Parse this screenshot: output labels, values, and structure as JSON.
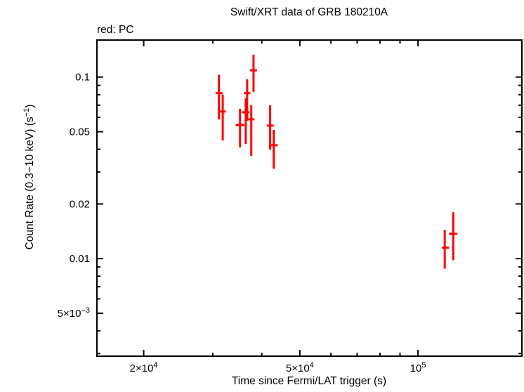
{
  "chart_data": {
    "type": "scatter",
    "title": "Swift/XRT data of GRB 180210A",
    "annotation": "red: PC",
    "xlabel": "Time since Fermi/LAT trigger (s)",
    "ylabel": "Count Rate (0.3−10 keV) (s−1)",
    "ylabel_parts": [
      {
        "text": "Count Rate (0.3−10 keV) (s"
      },
      {
        "text": "−1",
        "sup": true
      },
      {
        "text": ")"
      }
    ],
    "xscale": "log",
    "yscale": "log",
    "xlim": [
      15200,
      184000
    ],
    "ylim": [
      0.0029,
      0.16
    ],
    "grid": false,
    "legend_position": "none",
    "background_color": "#ffffff",
    "axis_color": "#000000",
    "xticks": {
      "major": [
        {
          "value": 20000,
          "label_main": "2×10",
          "label_sup": "4"
        },
        {
          "value": 50000,
          "label_main": "5×10",
          "label_sup": "4"
        },
        {
          "value": 100000,
          "label_main": "10",
          "label_sup": "5"
        }
      ],
      "minor": [
        30000,
        40000,
        60000,
        70000,
        80000,
        90000
      ]
    },
    "yticks": {
      "major": [
        {
          "value": 0.1,
          "label_main": "0.1",
          "label_sup": ""
        },
        {
          "value": 0.05,
          "label_main": "0.05",
          "label_sup": ""
        },
        {
          "value": 0.02,
          "label_main": "0.02",
          "label_sup": ""
        },
        {
          "value": 0.01,
          "label_main": "0.01",
          "label_sup": ""
        },
        {
          "value": 0.005,
          "label_main": "5×10",
          "label_sup": "−3"
        }
      ],
      "minor": [
        0.09,
        0.08,
        0.07,
        0.06,
        0.04,
        0.03,
        0.009,
        0.008,
        0.007,
        0.006,
        0.004,
        0.003
      ]
    },
    "series": [
      {
        "name": "PC",
        "color": "#ff0000",
        "points": [
          {
            "t": 31100,
            "t_lo": 30500,
            "t_hi": 31800,
            "rate": 0.0815,
            "rate_lo": 0.0585,
            "rate_hi": 0.103
          },
          {
            "t": 31800,
            "t_lo": 31200,
            "t_hi": 32400,
            "rate": 0.0646,
            "rate_lo": 0.0448,
            "rate_hi": 0.08
          },
          {
            "t": 35200,
            "t_lo": 34300,
            "t_hi": 36100,
            "rate": 0.0545,
            "rate_lo": 0.041,
            "rate_hi": 0.0669
          },
          {
            "t": 36400,
            "t_lo": 35600,
            "t_hi": 37200,
            "rate": 0.064,
            "rate_lo": 0.0428,
            "rate_hi": 0.0765
          },
          {
            "t": 36700,
            "t_lo": 36000,
            "t_hi": 37400,
            "rate": 0.0815,
            "rate_lo": 0.0575,
            "rate_hi": 0.0974
          },
          {
            "t": 37600,
            "t_lo": 36900,
            "t_hi": 38300,
            "rate": 0.0585,
            "rate_lo": 0.0368,
            "rate_hi": 0.07
          },
          {
            "t": 38100,
            "t_lo": 37300,
            "t_hi": 38900,
            "rate": 0.109,
            "rate_lo": 0.0829,
            "rate_hi": 0.133
          },
          {
            "t": 42000,
            "t_lo": 41200,
            "t_hi": 42900,
            "rate": 0.054,
            "rate_lo": 0.0399,
            "rate_hi": 0.07
          },
          {
            "t": 42900,
            "t_lo": 42100,
            "t_hi": 43900,
            "rate": 0.0421,
            "rate_lo": 0.0313,
            "rate_hi": 0.0512
          },
          {
            "t": 117000,
            "t_lo": 115000,
            "t_hi": 120000,
            "rate": 0.0115,
            "rate_lo": 0.0088,
            "rate_hi": 0.0144
          },
          {
            "t": 123000,
            "t_lo": 120000,
            "t_hi": 126000,
            "rate": 0.0137,
            "rate_lo": 0.0098,
            "rate_hi": 0.018
          }
        ]
      }
    ]
  }
}
